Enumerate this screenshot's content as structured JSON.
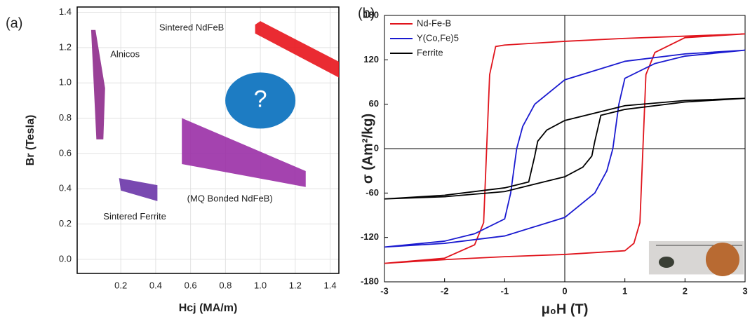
{
  "chart_data": [
    {
      "type": "region",
      "panel_label": "(a)",
      "x_label": "Hcj (MA/m)",
      "y_label": "Br (Tesla)",
      "xlim": [
        -0.05,
        1.45
      ],
      "ylim": [
        -0.08,
        1.43
      ],
      "xticks": [
        0.2,
        0.4,
        0.6,
        0.8,
        {
          "value": 1,
          "label": "1.0"
        },
        1.2,
        1.4
      ],
      "yticks": [
        {
          "value": 0,
          "label": "0.0"
        },
        0.2,
        0.4,
        0.6,
        0.8,
        {
          "value": 1,
          "label": "1.0"
        },
        1.2,
        1.4
      ],
      "grid": true,
      "regions": [
        {
          "name": "Alnicos",
          "color": "#8e2b8c",
          "x": [
            0.03,
            0.055,
            0.11,
            0.1,
            0.06
          ],
          "y": [
            1.3,
            1.3,
            0.97,
            0.68,
            0.68
          ]
        },
        {
          "name": "Sintered NdFeB",
          "color": "#e8141c",
          "x": [
            0.97,
            1.0,
            1.45,
            1.45,
            0.97
          ],
          "y": [
            1.33,
            1.35,
            1.12,
            1.03,
            1.28
          ]
        },
        {
          "name": "(MQ Bonded NdFeB)",
          "color": "#9a2fa6",
          "x": [
            0.55,
            1.26,
            1.26,
            0.55
          ],
          "y": [
            0.8,
            0.5,
            0.41,
            0.54
          ]
        },
        {
          "name": "Sintered Ferrite",
          "color": "#6a35a8",
          "x": [
            0.19,
            0.41,
            0.41,
            0.2
          ],
          "y": [
            0.46,
            0.42,
            0.33,
            0.39
          ]
        }
      ],
      "annotation": {
        "text": "?",
        "color": "#1d7cc3"
      }
    },
    {
      "type": "line",
      "panel_label": "(b)",
      "x_label": "μ₀H (T)",
      "y_label": "σ (Am²/kg)",
      "xlim": [
        -3,
        3
      ],
      "ylim": [
        -180,
        180
      ],
      "xticks": [
        -3,
        -2,
        -1,
        0,
        1,
        2,
        3
      ],
      "yticks": [
        -180,
        -120,
        -60,
        0,
        60,
        120,
        180
      ],
      "legend": "upper left",
      "series": [
        {
          "name": "Nd-Fe-B",
          "color": "#e0141c",
          "x": [
            3,
            2,
            1,
            0,
            -1,
            -1.15,
            -1.25,
            -1.3,
            -1.35,
            -1.5,
            -2,
            -3,
            -2,
            -1,
            0,
            1,
            1.15,
            1.25,
            1.3,
            1.35,
            1.5,
            2,
            3
          ],
          "values": [
            155,
            152,
            149,
            145,
            140,
            138,
            100,
            0,
            -100,
            -130,
            -148,
            -155,
            -150,
            -146,
            -143,
            -138,
            -128,
            -100,
            0,
            100,
            130,
            150,
            155
          ]
        },
        {
          "name": "Y(Co,Fe)5",
          "color": "#1a1ad0",
          "x": [
            3,
            2,
            1,
            0,
            -0.5,
            -0.7,
            -0.8,
            -0.9,
            -1,
            -1.5,
            -2,
            -3,
            -2,
            -1,
            0,
            0.5,
            0.7,
            0.8,
            0.9,
            1,
            1.5,
            2,
            3
          ],
          "values": [
            133,
            128,
            118,
            93,
            60,
            30,
            0,
            -60,
            -95,
            -115,
            -125,
            -133,
            -128,
            -118,
            -93,
            -60,
            -30,
            0,
            60,
            95,
            115,
            125,
            133
          ]
        },
        {
          "name": "Ferrite",
          "color": "#000000",
          "x": [
            3,
            2,
            1,
            0,
            -0.3,
            -0.45,
            -0.5,
            -0.6,
            -1,
            -2,
            -3,
            -2,
            -1,
            0,
            0.3,
            0.45,
            0.5,
            0.6,
            1,
            2,
            3
          ],
          "values": [
            68,
            65,
            58,
            38,
            25,
            10,
            -10,
            -45,
            -53,
            -63,
            -68,
            -65,
            -58,
            -38,
            -25,
            -10,
            10,
            45,
            53,
            63,
            68
          ]
        }
      ]
    }
  ]
}
